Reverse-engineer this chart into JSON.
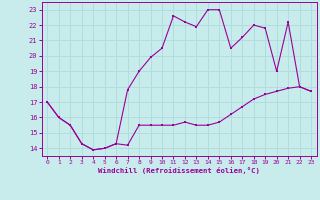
{
  "xlabel": "Windchill (Refroidissement éolien,°C)",
  "background_color": "#c8ecec",
  "line_color": "#990099",
  "grid_color": "#b0dede",
  "line1_x": [
    0,
    1,
    2,
    3,
    4,
    5,
    6,
    7,
    8,
    9,
    10,
    11,
    12,
    13,
    14,
    15,
    16,
    17,
    18,
    19,
    20,
    21,
    22,
    23
  ],
  "line1_y": [
    17.0,
    16.0,
    15.5,
    14.3,
    13.9,
    14.0,
    14.3,
    14.2,
    15.5,
    15.5,
    15.5,
    15.5,
    15.7,
    15.5,
    15.5,
    15.7,
    16.2,
    16.7,
    17.2,
    17.5,
    17.7,
    17.9,
    18.0,
    17.7
  ],
  "line2_x": [
    0,
    1,
    2,
    3,
    4,
    5,
    6,
    7,
    8,
    9,
    10,
    11,
    12,
    13,
    14,
    15,
    16,
    17,
    18,
    19,
    20,
    21,
    22,
    23
  ],
  "line2_y": [
    17.0,
    16.0,
    15.5,
    14.3,
    13.9,
    14.0,
    14.3,
    17.8,
    19.0,
    19.9,
    20.5,
    22.6,
    22.2,
    21.9,
    23.0,
    23.0,
    20.5,
    21.2,
    22.0,
    21.8,
    19.0,
    22.2,
    18.0,
    17.7
  ],
  "xlim": [
    -0.5,
    23.5
  ],
  "ylim": [
    13.5,
    23.5
  ],
  "yticks": [
    14,
    15,
    16,
    17,
    18,
    19,
    20,
    21,
    22,
    23
  ],
  "xticks": [
    0,
    1,
    2,
    3,
    4,
    5,
    6,
    7,
    8,
    9,
    10,
    11,
    12,
    13,
    14,
    15,
    16,
    17,
    18,
    19,
    20,
    21,
    22,
    23
  ]
}
